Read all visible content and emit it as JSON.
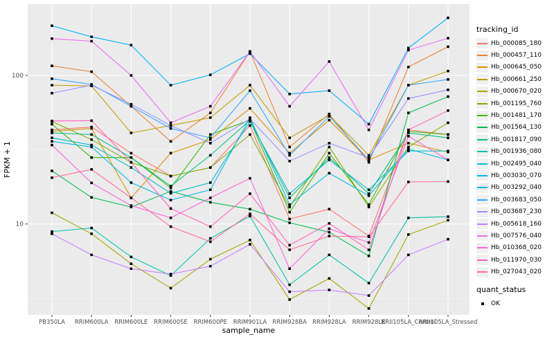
{
  "chart_data": {
    "type": "line",
    "title": "",
    "xlabel": "sample_name",
    "ylabel": "FPKM + 1",
    "yscale": "log10",
    "ylim": [
      2.45,
      302
    ],
    "grid": true,
    "legend_position": "right",
    "point_shape": "black-square",
    "y_ticks": [
      {
        "label": "100",
        "value": 100
      },
      {
        "label": "10",
        "value": 10
      }
    ],
    "y_minor": [
      3.162,
      31.62
    ],
    "categories": [
      "PB350LA",
      "RRIM600LA",
      "RRIM600LE",
      "RRIM600SE",
      "RRIM600PE",
      "RRIM901LA",
      "RRIM928BA",
      "RRIM928LA",
      "RRIM928LE",
      "RRII105LA_Control",
      "RRII105LA_Stressed"
    ],
    "series": [
      {
        "name": "Hb_000085_180",
        "color": "#F8766D",
        "values": [
          43,
          45,
          30,
          21,
          24,
          46,
          10.8,
          12.6,
          8.3,
          43,
          40
        ]
      },
      {
        "name": "Hb_000457_110",
        "color": "#EA8331",
        "values": [
          116,
          106,
          62,
          36,
          56,
          145,
          33,
          55,
          26,
          114,
          156
        ]
      },
      {
        "name": "Hb_000645_050",
        "color": "#D89000",
        "values": [
          42,
          44,
          15,
          30,
          37,
          60,
          30,
          50,
          27,
          35,
          30.5
        ]
      },
      {
        "name": "Hb_000661_250",
        "color": "#C09B00",
        "values": [
          86,
          85,
          41,
          46,
          52,
          86,
          38,
          54,
          29,
          86,
          107
        ]
      },
      {
        "name": "Hb_000670_020",
        "color": "#A3A500",
        "values": [
          11.9,
          8.6,
          5.4,
          3.7,
          5.8,
          7.8,
          3.1,
          4.3,
          2.7,
          8.5,
          10.6
        ]
      },
      {
        "name": "Hb_001195_760",
        "color": "#7CAE00",
        "values": [
          49,
          37,
          26,
          21,
          24,
          40,
          13,
          33,
          13,
          33,
          48
        ]
      },
      {
        "name": "Hb_001481_170",
        "color": "#39B600",
        "values": [
          47,
          28,
          28,
          17.5,
          40,
          50,
          12,
          30,
          13.5,
          42,
          40
        ]
      },
      {
        "name": "Hb_001564_130",
        "color": "#00BB4E",
        "values": [
          22.8,
          15.1,
          13,
          16.6,
          14,
          12.6,
          10.2,
          8.8,
          6.1,
          56,
          72
        ]
      },
      {
        "name": "Hb_001817_090",
        "color": "#00BF7D",
        "values": [
          41,
          40,
          28,
          18,
          29,
          50,
          15,
          28,
          16,
          41,
          38
        ]
      },
      {
        "name": "Hb_001936_080",
        "color": "#00C1A7",
        "values": [
          8.9,
          9.4,
          6.0,
          4.5,
          8.0,
          11.3,
          3.9,
          6.2,
          4.0,
          11.0,
          11.2
        ]
      },
      {
        "name": "Hb_002495_040",
        "color": "#00BFC4",
        "values": [
          38,
          34,
          24,
          16.1,
          19,
          49,
          16,
          27,
          17,
          31,
          31
        ]
      },
      {
        "name": "Hb_003030_070",
        "color": "#00BAE0",
        "values": [
          36,
          33,
          19,
          14.5,
          17,
          52,
          13.5,
          22,
          15.5,
          32,
          27
        ]
      },
      {
        "name": "Hb_003292_040",
        "color": "#00B0F6",
        "values": [
          216,
          182,
          160,
          86,
          101,
          140,
          75,
          79,
          47,
          153,
          244
        ]
      },
      {
        "name": "Hb_003683_050",
        "color": "#35A2FF",
        "values": [
          95,
          87,
          62,
          44,
          38,
          79,
          29,
          53,
          27,
          86,
          94
        ]
      },
      {
        "name": "Hb_003687_230",
        "color": "#9590FF",
        "values": [
          76,
          86,
          64,
          46,
          35,
          51,
          26.5,
          35,
          28,
          70,
          80
        ]
      },
      {
        "name": "Hb_005618_160",
        "color": "#C77CFF",
        "values": [
          8.6,
          6.2,
          5.0,
          4.6,
          5.2,
          7.3,
          3.5,
          3.6,
          3.3,
          6.2,
          7.9
        ]
      },
      {
        "name": "Hb_007576_040",
        "color": "#E76BF3",
        "values": [
          177,
          170,
          100,
          48,
          62,
          145,
          62,
          124,
          43,
          148,
          178
        ]
      },
      {
        "name": "Hb_010368_020",
        "color": "#FA62DB",
        "values": [
          34,
          18.9,
          13.3,
          11,
          15,
          20.3,
          5.0,
          9.3,
          7.5,
          39,
          27
        ]
      },
      {
        "name": "Hb_011970_030",
        "color": "#FF62BC",
        "values": [
          49.4,
          49.6,
          26,
          12.7,
          9.6,
          16,
          7.2,
          10.1,
          6.7,
          43,
          58
        ]
      },
      {
        "name": "Hb_027043_020",
        "color": "#FF6A98",
        "values": [
          20.5,
          23.3,
          15,
          9.6,
          7.6,
          11.7,
          6.7,
          8.3,
          8.2,
          19.2,
          19.3
        ]
      }
    ]
  },
  "legend": {
    "tracking_title": "tracking_id",
    "quant_title": "quant_status",
    "quant_items": [
      {
        "label": "OK"
      }
    ]
  },
  "style": {
    "panel_bg": "#EBEBEB",
    "grid_major": "#FFFFFF",
    "grid_minor": "#F6F6F6",
    "axis_text": "#4d4d4d",
    "tick_color": "#333333",
    "point_color": "#000000"
  }
}
